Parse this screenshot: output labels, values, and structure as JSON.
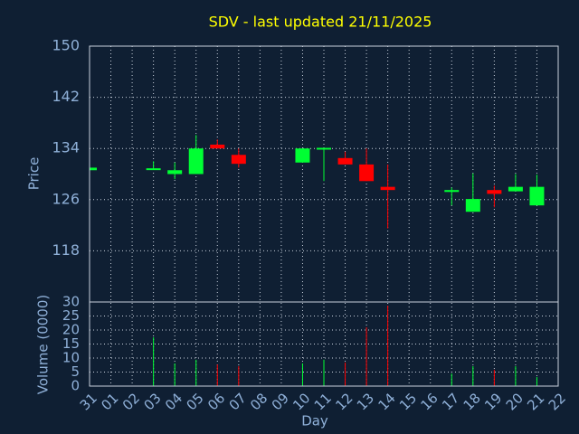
{
  "chart_data": [
    {
      "type": "candlestick",
      "title": "SDV - last updated 21/11/2025",
      "ylabel": "Price",
      "open": [
        130.6,
        null,
        null,
        130.8,
        130.0,
        130.0,
        134.6,
        133.0,
        null,
        null,
        131.8,
        133.9,
        132.5,
        131.5,
        128.0,
        null,
        null,
        127.2,
        124.1,
        127.5,
        127.3,
        125.1,
        null
      ],
      "high": [
        131.0,
        null,
        null,
        132.0,
        131.8,
        136.1,
        135.4,
        134.0,
        null,
        null,
        134.0,
        134.1,
        133.5,
        134.0,
        131.5,
        null,
        null,
        127.9,
        130.1,
        128.2,
        130.0,
        129.9,
        null
      ],
      "low": [
        130.6,
        null,
        null,
        130.8,
        129.2,
        130.0,
        134.0,
        131.0,
        null,
        null,
        131.8,
        128.9,
        131.5,
        128.9,
        121.5,
        null,
        null,
        125.1,
        124.1,
        124.8,
        127.3,
        125.1,
        null
      ],
      "close": [
        131.0,
        null,
        null,
        130.9,
        130.6,
        134.0,
        134.0,
        131.6,
        null,
        null,
        134.0,
        134.1,
        131.5,
        128.9,
        127.5,
        null,
        null,
        127.5,
        126.1,
        126.9,
        128.0,
        128.0,
        null
      ],
      "up_color": "#00ff33",
      "down_color": "#ff0000",
      "ylim": [
        110,
        150
      ],
      "yticks": [
        118,
        126,
        134,
        142,
        150
      ],
      "grid": true
    },
    {
      "type": "bar",
      "ylabel": "Volume (0000)",
      "xlabel": "Day",
      "categories": [
        "31",
        "01",
        "02",
        "03",
        "04",
        "05",
        "06",
        "07",
        "08",
        "09",
        "10",
        "11",
        "12",
        "13",
        "14",
        "15",
        "16",
        "17",
        "18",
        "19",
        "20",
        "21",
        "22"
      ],
      "values": [
        0,
        null,
        null,
        17.4,
        8.1,
        9.4,
        7.7,
        7.1,
        null,
        null,
        8.1,
        9.4,
        8.4,
        21,
        28.7,
        null,
        null,
        4.5,
        7.1,
        5.8,
        7.1,
        3.2,
        null
      ],
      "ylim": [
        0,
        30
      ],
      "yticks": [
        0,
        5,
        10,
        15,
        20,
        25,
        30
      ],
      "grid": true
    }
  ]
}
